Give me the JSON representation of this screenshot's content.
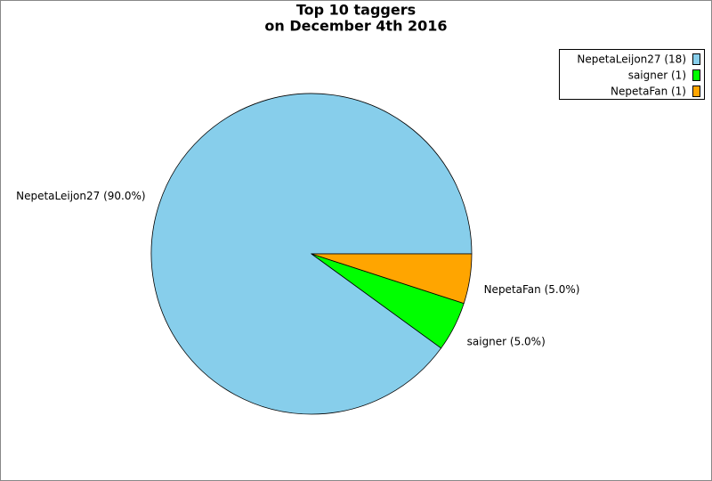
{
  "chart_data": {
    "type": "pie",
    "title": [
      "Top 10 taggers",
      "on December 4th 2016"
    ],
    "categories": [
      "NepetaLeijon27 (18)",
      "saigner (1)",
      "NepetaFan (1)"
    ],
    "values": [
      90,
      5,
      5
    ],
    "value_labels": [
      "NepetaLeijon27 (90.0%)",
      "saigner (5.0%)",
      "NepetaFan (5.0%)"
    ],
    "colors": [
      "#87ceeb",
      "#00ff00",
      "#ffa500"
    ],
    "legend": "upper right"
  }
}
